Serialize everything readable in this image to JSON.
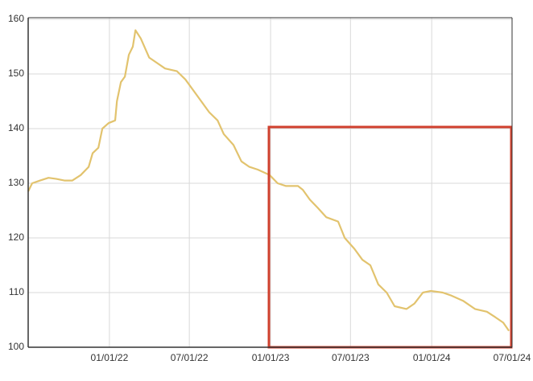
{
  "chart_data": {
    "type": "line",
    "x": [
      "2021-07-01",
      "2021-07-10",
      "2021-07-28",
      "2021-08-16",
      "2021-09-03",
      "2021-09-21",
      "2021-10-09",
      "2021-10-28",
      "2021-11-15",
      "2021-11-24",
      "2021-12-07",
      "2021-12-16",
      "2021-12-30",
      "2022-01-14",
      "2022-01-18",
      "2022-01-27",
      "2022-02-05",
      "2022-02-14",
      "2022-02-23",
      "2022-03-01",
      "2022-03-13",
      "2022-04-01",
      "2022-04-19",
      "2022-05-07",
      "2022-06-03",
      "2022-06-22",
      "2022-07-10",
      "2022-07-28",
      "2022-08-15",
      "2022-09-03",
      "2022-09-17",
      "2022-10-09",
      "2022-10-27",
      "2022-11-14",
      "2022-12-03",
      "2022-12-30",
      "2023-01-17",
      "2023-02-05",
      "2023-03-04",
      "2023-03-15",
      "2023-03-31",
      "2023-04-18",
      "2023-05-07",
      "2023-06-03",
      "2023-06-18",
      "2023-07-10",
      "2023-07-28",
      "2023-08-15",
      "2023-09-02",
      "2023-09-21",
      "2023-10-09",
      "2023-11-05",
      "2023-11-23",
      "2023-12-12",
      "2023-12-30",
      "2024-01-26",
      "2024-02-13",
      "2024-03-12",
      "2024-04-08",
      "2024-05-05",
      "2024-05-24",
      "2024-06-11",
      "2024-06-24"
    ],
    "series": [
      {
        "color": "#e2c36e",
        "values": [
          128.5,
          130,
          130.5,
          131,
          130.8,
          130.5,
          130.5,
          131.5,
          133,
          135.5,
          136.5,
          140,
          141,
          141.5,
          145,
          148.5,
          149.5,
          153.5,
          155,
          158,
          156.5,
          153,
          152,
          151,
          150.5,
          149,
          147,
          145,
          143,
          141.5,
          139,
          137,
          134,
          133,
          132.5,
          131.5,
          130,
          129.5,
          129.5,
          128.8,
          127,
          125.5,
          123.8,
          123,
          120,
          118,
          116,
          115,
          111.5,
          110,
          107.5,
          107,
          108,
          110,
          110.3,
          110,
          109.5,
          108.5,
          107,
          106.5,
          105.5,
          104.5,
          103
        ]
      }
    ],
    "xlim": [
      "2021-07-01",
      "2024-07-01"
    ],
    "xticks": [
      {
        "value": "2022-01-01",
        "label": "01/01/22"
      },
      {
        "value": "2022-07-01",
        "label": "07/01/22"
      },
      {
        "value": "2023-01-01",
        "label": "01/01/23"
      },
      {
        "value": "2023-07-01",
        "label": "07/01/23"
      },
      {
        "value": "2024-01-01",
        "label": "01/01/24"
      },
      {
        "value": "2024-07-01",
        "label": "07/01/24"
      }
    ],
    "ylim": [
      100,
      160
    ],
    "yticks": [
      100,
      110,
      120,
      130,
      140,
      150,
      160
    ],
    "grid": true
  }
}
